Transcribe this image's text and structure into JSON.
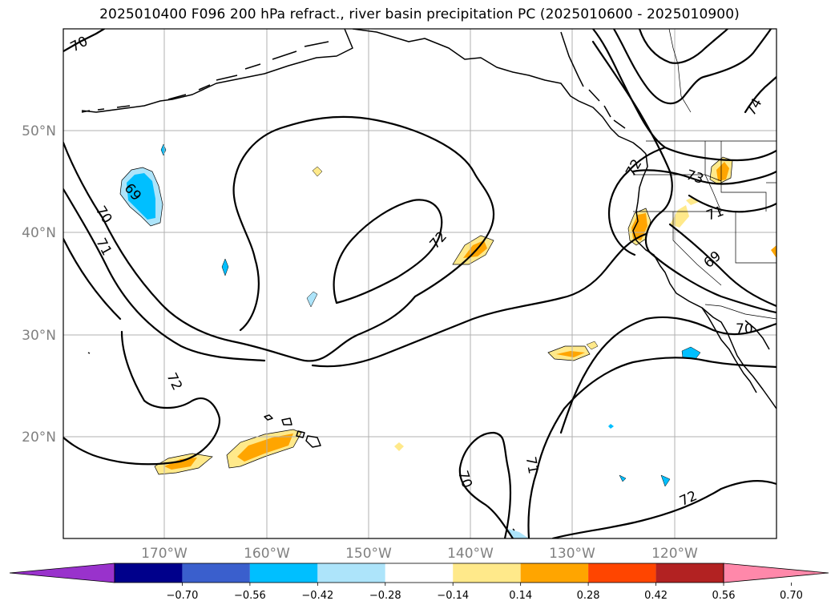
{
  "title": "2025010400 F096 200 hPa refract., river basin precipitation PC (2025010600 - 2025010900)",
  "map": {
    "lat_labels": [
      "50°N",
      "40°N",
      "30°N",
      "20°N"
    ],
    "lon_labels": [
      "170°W",
      "160°W",
      "150°W",
      "140°W",
      "130°W",
      "120°W"
    ],
    "contour_labels": [
      "70",
      "70",
      "71",
      "69",
      "72",
      "72",
      "72",
      "73",
      "71",
      "69",
      "70",
      "74",
      "71",
      "70",
      "72"
    ],
    "colors": {
      "light_blue": "#ade4fa",
      "cyan": "#00bfff",
      "light_yellow": "#ffe98a",
      "orange": "#ffa500"
    }
  },
  "colorbar": {
    "bins": [
      {
        "color": "#9932cc"
      },
      {
        "color": "#00008b"
      },
      {
        "color": "#3a5fcd"
      },
      {
        "color": "#00bfff"
      },
      {
        "color": "#ade4fa"
      },
      {
        "color": "#ffffff"
      },
      {
        "color": "#ffe98a"
      },
      {
        "color": "#ffa500"
      },
      {
        "color": "#ff4500"
      },
      {
        "color": "#b22222"
      },
      {
        "color": "#ff88aa"
      }
    ],
    "ticks": [
      "−0.70",
      "−0.56",
      "−0.42",
      "−0.28",
      "−0.14",
      "0.14",
      "0.28",
      "0.42",
      "0.56",
      "0.70"
    ]
  }
}
